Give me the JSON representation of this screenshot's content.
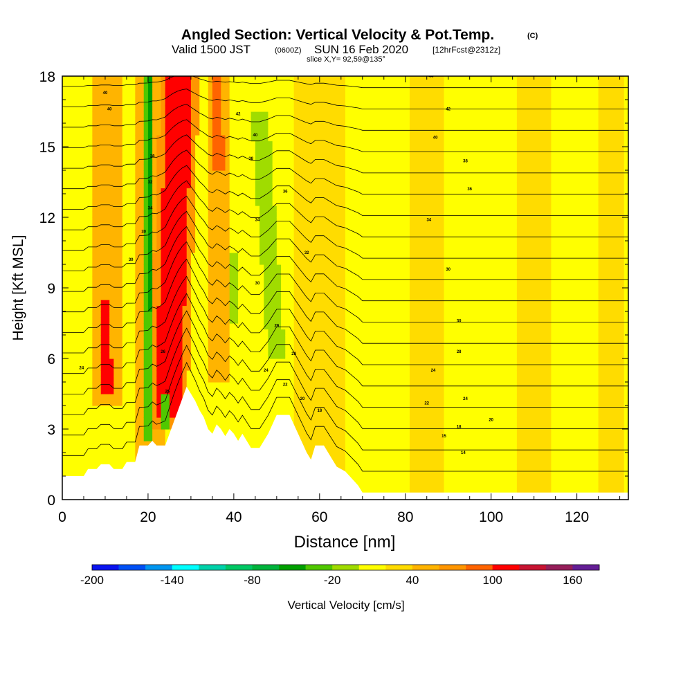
{
  "header": {
    "title": "Angled Section: Vertical Velocity & Pot.Temp.",
    "title_tag": "(C)",
    "valid_prefix": "Valid 1500 JST",
    "valid_zulu": "(0600Z)",
    "valid_date": "SUN 16 Feb 2020",
    "forecast_tag": "[12hrFcst@2312z]",
    "slice": "slice X,Y= 92,59@135°"
  },
  "chart_data": {
    "type": "heatmap",
    "xlabel": "Distance [nm]",
    "ylabel": "Height [Kft MSL]",
    "xlim": [
      0,
      132
    ],
    "ylim": [
      0,
      18
    ],
    "x_ticks": [
      0,
      20,
      40,
      60,
      80,
      100,
      120
    ],
    "y_ticks": [
      0,
      3,
      6,
      9,
      12,
      15,
      18
    ],
    "colorbar": {
      "label": "Vertical Velocity [cm/s]",
      "tick_labels": [
        -200,
        -140,
        -80,
        -20,
        40,
        100,
        160
      ],
      "bin_edges": [
        -200,
        -180,
        -160,
        -140,
        -120,
        -100,
        -80,
        -60,
        -40,
        -20,
        0,
        20,
        40,
        60,
        80,
        100,
        120,
        140,
        160,
        180
      ],
      "colors": [
        "#0a14f0",
        "#0050f5",
        "#0096f0",
        "#00ffff",
        "#00d2aa",
        "#00c864",
        "#00b43c",
        "#00a000",
        "#50c800",
        "#a0dc00",
        "#ffff00",
        "#ffdc00",
        "#ffb400",
        "#ff9600",
        "#ff6400",
        "#ff0000",
        "#c81432",
        "#961e5a",
        "#641e96"
      ]
    },
    "background_value": 10,
    "velocity_features": [
      {
        "x_start": 10.5,
        "x_end": 10.5,
        "z_base": 4,
        "z_top": 18,
        "half_width": 3,
        "value": 40
      },
      {
        "x_start": 10.5,
        "x_end": 10,
        "z_base": 4.5,
        "z_top": 8.5,
        "half_width": 1.2,
        "value": 100
      },
      {
        "x_start": 20.5,
        "x_end": 20.5,
        "z_base": 1.5,
        "z_top": 18,
        "half_width": 3.5,
        "value": 40
      },
      {
        "x_start": 20,
        "x_end": 20,
        "z_base": 2.5,
        "z_top": 18,
        "half_width": 1.4,
        "value": -40
      },
      {
        "x_start": 20.5,
        "x_end": 20.5,
        "z_base": 8,
        "z_top": 18,
        "half_width": 0.7,
        "value": -60
      },
      {
        "x_start": 24.5,
        "x_end": 27.5,
        "z_base": 3,
        "z_top": 18,
        "half_width": 4.5,
        "value": 60
      },
      {
        "x_start": 24.5,
        "x_end": 27.5,
        "z_base": 3.5,
        "z_top": 18,
        "half_width": 3,
        "value": 100
      },
      {
        "x_start": 24,
        "x_end": 24,
        "z_base": 3,
        "z_top": 4.5,
        "half_width": 1.2,
        "value": -40
      },
      {
        "x_start": 37,
        "x_end": 36,
        "z_base": 5,
        "z_top": 18,
        "half_width": 2.5,
        "value": 40
      },
      {
        "x_start": 36.5,
        "x_end": 36,
        "z_base": 14,
        "z_top": 18,
        "half_width": 1.2,
        "value": 80
      },
      {
        "x_start": 40,
        "x_end": 40,
        "z_base": 7.5,
        "z_top": 10.5,
        "half_width": 1.2,
        "value": -20
      },
      {
        "x_start": 50,
        "x_end": 46,
        "z_base": 6,
        "z_top": 16.5,
        "half_width": 2,
        "value": -20
      },
      {
        "x_start": 60,
        "x_end": 60,
        "z_base": 0,
        "z_top": 18,
        "half_width": 6,
        "value": 30
      },
      {
        "x_start": 85,
        "x_end": 85,
        "z_base": 0,
        "z_top": 18,
        "half_width": 4,
        "value": 30
      },
      {
        "x_start": 110,
        "x_end": 110,
        "z_base": 0,
        "z_top": 18,
        "half_width": 4,
        "value": 30
      },
      {
        "x_start": 128,
        "x_end": 128,
        "z_base": 0,
        "z_top": 18,
        "half_width": 3,
        "value": 30
      }
    ],
    "terrain": [
      [
        0,
        1
      ],
      [
        5,
        1
      ],
      [
        6,
        1.3
      ],
      [
        8,
        1.3
      ],
      [
        9,
        1.5
      ],
      [
        11,
        1.5
      ],
      [
        12,
        1.3
      ],
      [
        14,
        1.3
      ],
      [
        15,
        1.6
      ],
      [
        17,
        1.6
      ],
      [
        18,
        2.3
      ],
      [
        20,
        2.3
      ],
      [
        21,
        2.5
      ],
      [
        22,
        2.3
      ],
      [
        24,
        2.3
      ],
      [
        25,
        2.8
      ],
      [
        26,
        3.3
      ],
      [
        27,
        3.8
      ],
      [
        28,
        4.3
      ],
      [
        29,
        4.8
      ],
      [
        30,
        4.5
      ],
      [
        31,
        4.2
      ],
      [
        32,
        3.8
      ],
      [
        33,
        3.5
      ],
      [
        34,
        3
      ],
      [
        35,
        2.8
      ],
      [
        36,
        3.2
      ],
      [
        37,
        3
      ],
      [
        38,
        2.7
      ],
      [
        39,
        3
      ],
      [
        40,
        2.8
      ],
      [
        41,
        2.5
      ],
      [
        42,
        2.8
      ],
      [
        43,
        2.5
      ],
      [
        44,
        2.2
      ],
      [
        46,
        2.2
      ],
      [
        47,
        2.5
      ],
      [
        48,
        2.8
      ],
      [
        49,
        3.2
      ],
      [
        50,
        3.6
      ],
      [
        53,
        3.6
      ],
      [
        54,
        3.2
      ],
      [
        55,
        2.8
      ],
      [
        56,
        2.4
      ],
      [
        57,
        2
      ],
      [
        58,
        1.7
      ],
      [
        59,
        2.3
      ],
      [
        61,
        2.3
      ],
      [
        62,
        2
      ],
      [
        63,
        1.7
      ],
      [
        64,
        1.4
      ],
      [
        66,
        1.2
      ],
      [
        67,
        1
      ],
      [
        68,
        0.8
      ],
      [
        69,
        0.6
      ],
      [
        70,
        0.3
      ],
      [
        132,
        0.3
      ]
    ],
    "contours": {
      "variable": "Potential Temperature",
      "levels": [
        10,
        12,
        14,
        16,
        18,
        20,
        22,
        24,
        26,
        28,
        30,
        32,
        34,
        36,
        38,
        40,
        42,
        44,
        46
      ],
      "labels": [
        {
          "x": 4.5,
          "z": 5.6,
          "text": "24"
        },
        {
          "x": 10,
          "z": 17.3,
          "text": "40"
        },
        {
          "x": 11,
          "z": 16.6,
          "text": "40"
        },
        {
          "x": 16,
          "z": 10.2,
          "text": "30"
        },
        {
          "x": 19,
          "z": 11.4,
          "text": "30"
        },
        {
          "x": 21,
          "z": 14.6,
          "text": "38"
        },
        {
          "x": 20.5,
          "z": 13.5,
          "text": "32"
        },
        {
          "x": 20.5,
          "z": 12.4,
          "text": "34"
        },
        {
          "x": 23.5,
          "z": 6.3,
          "text": "26"
        },
        {
          "x": 24.5,
          "z": 4.6,
          "text": "25"
        },
        {
          "x": 41,
          "z": 16.4,
          "text": "42"
        },
        {
          "x": 45,
          "z": 15.5,
          "text": "40"
        },
        {
          "x": 44,
          "z": 14.5,
          "text": "38"
        },
        {
          "x": 52,
          "z": 13.1,
          "text": "36"
        },
        {
          "x": 45.5,
          "z": 11.9,
          "text": "34"
        },
        {
          "x": 57,
          "z": 10.5,
          "text": "32"
        },
        {
          "x": 45.5,
          "z": 9.2,
          "text": "30"
        },
        {
          "x": 50,
          "z": 7.4,
          "text": "29"
        },
        {
          "x": 54,
          "z": 6.2,
          "text": "28"
        },
        {
          "x": 47.5,
          "z": 5.5,
          "text": "24"
        },
        {
          "x": 52,
          "z": 4.9,
          "text": "22"
        },
        {
          "x": 56,
          "z": 4.3,
          "text": "20"
        },
        {
          "x": 60,
          "z": 3.8,
          "text": "18"
        },
        {
          "x": 86,
          "z": 18,
          "text": "44"
        },
        {
          "x": 90,
          "z": 16.6,
          "text": "42"
        },
        {
          "x": 87,
          "z": 15.4,
          "text": "40"
        },
        {
          "x": 94,
          "z": 14.4,
          "text": "38"
        },
        {
          "x": 95,
          "z": 13.2,
          "text": "36"
        },
        {
          "x": 85.5,
          "z": 11.9,
          "text": "34"
        },
        {
          "x": 90,
          "z": 9.8,
          "text": "30"
        },
        {
          "x": 92.5,
          "z": 7.6,
          "text": "30"
        },
        {
          "x": 92.5,
          "z": 6.3,
          "text": "28"
        },
        {
          "x": 86.5,
          "z": 5.5,
          "text": "24"
        },
        {
          "x": 94,
          "z": 4.3,
          "text": "24"
        },
        {
          "x": 85,
          "z": 4.1,
          "text": "22"
        },
        {
          "x": 100,
          "z": 3.4,
          "text": "20"
        },
        {
          "x": 92.5,
          "z": 3.1,
          "text": "18"
        },
        {
          "x": 89,
          "z": 2.7,
          "text": "15"
        },
        {
          "x": 93.5,
          "z": 2,
          "text": "14"
        }
      ]
    }
  }
}
